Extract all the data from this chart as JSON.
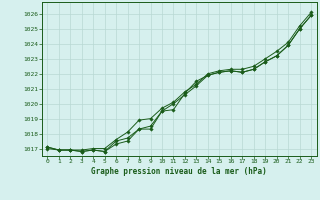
{
  "title": "Graphe pression niveau de la mer (hPa)",
  "bg_color": "#d6f0ee",
  "plot_bg_color": "#d6f0ee",
  "grid_color": "#b8d8d4",
  "line_color": "#1a5c1a",
  "marker_color": "#1a5c1a",
  "xlim": [
    -0.5,
    23.5
  ],
  "ylim": [
    1016.5,
    1026.8
  ],
  "yticks": [
    1017,
    1018,
    1019,
    1020,
    1021,
    1022,
    1023,
    1024,
    1025,
    1026
  ],
  "xticks": [
    0,
    1,
    2,
    3,
    4,
    5,
    6,
    7,
    8,
    9,
    10,
    11,
    12,
    13,
    14,
    15,
    16,
    17,
    18,
    19,
    20,
    21,
    22,
    23
  ],
  "series1": [
    1017.0,
    1016.9,
    1016.9,
    1016.8,
    1016.9,
    1016.8,
    1017.3,
    1017.5,
    1018.3,
    1018.3,
    1019.5,
    1019.6,
    1020.7,
    1021.5,
    1021.9,
    1022.1,
    1022.2,
    1022.1,
    1022.3,
    1022.8,
    1023.2,
    1023.9,
    1025.0,
    1025.9
  ],
  "series2": [
    1017.1,
    1016.9,
    1016.9,
    1016.8,
    1016.9,
    1016.8,
    1017.5,
    1017.7,
    1018.3,
    1018.5,
    1019.5,
    1020.0,
    1020.6,
    1021.2,
    1021.9,
    1022.1,
    1022.2,
    1022.1,
    1022.3,
    1022.8,
    1023.2,
    1023.9,
    1025.0,
    1025.9
  ],
  "series3": [
    1017.1,
    1016.9,
    1016.9,
    1016.9,
    1017.0,
    1017.0,
    1017.6,
    1018.1,
    1018.9,
    1019.0,
    1019.7,
    1020.1,
    1020.8,
    1021.3,
    1022.0,
    1022.2,
    1022.3,
    1022.3,
    1022.5,
    1023.0,
    1023.5,
    1024.1,
    1025.2,
    1026.1
  ]
}
